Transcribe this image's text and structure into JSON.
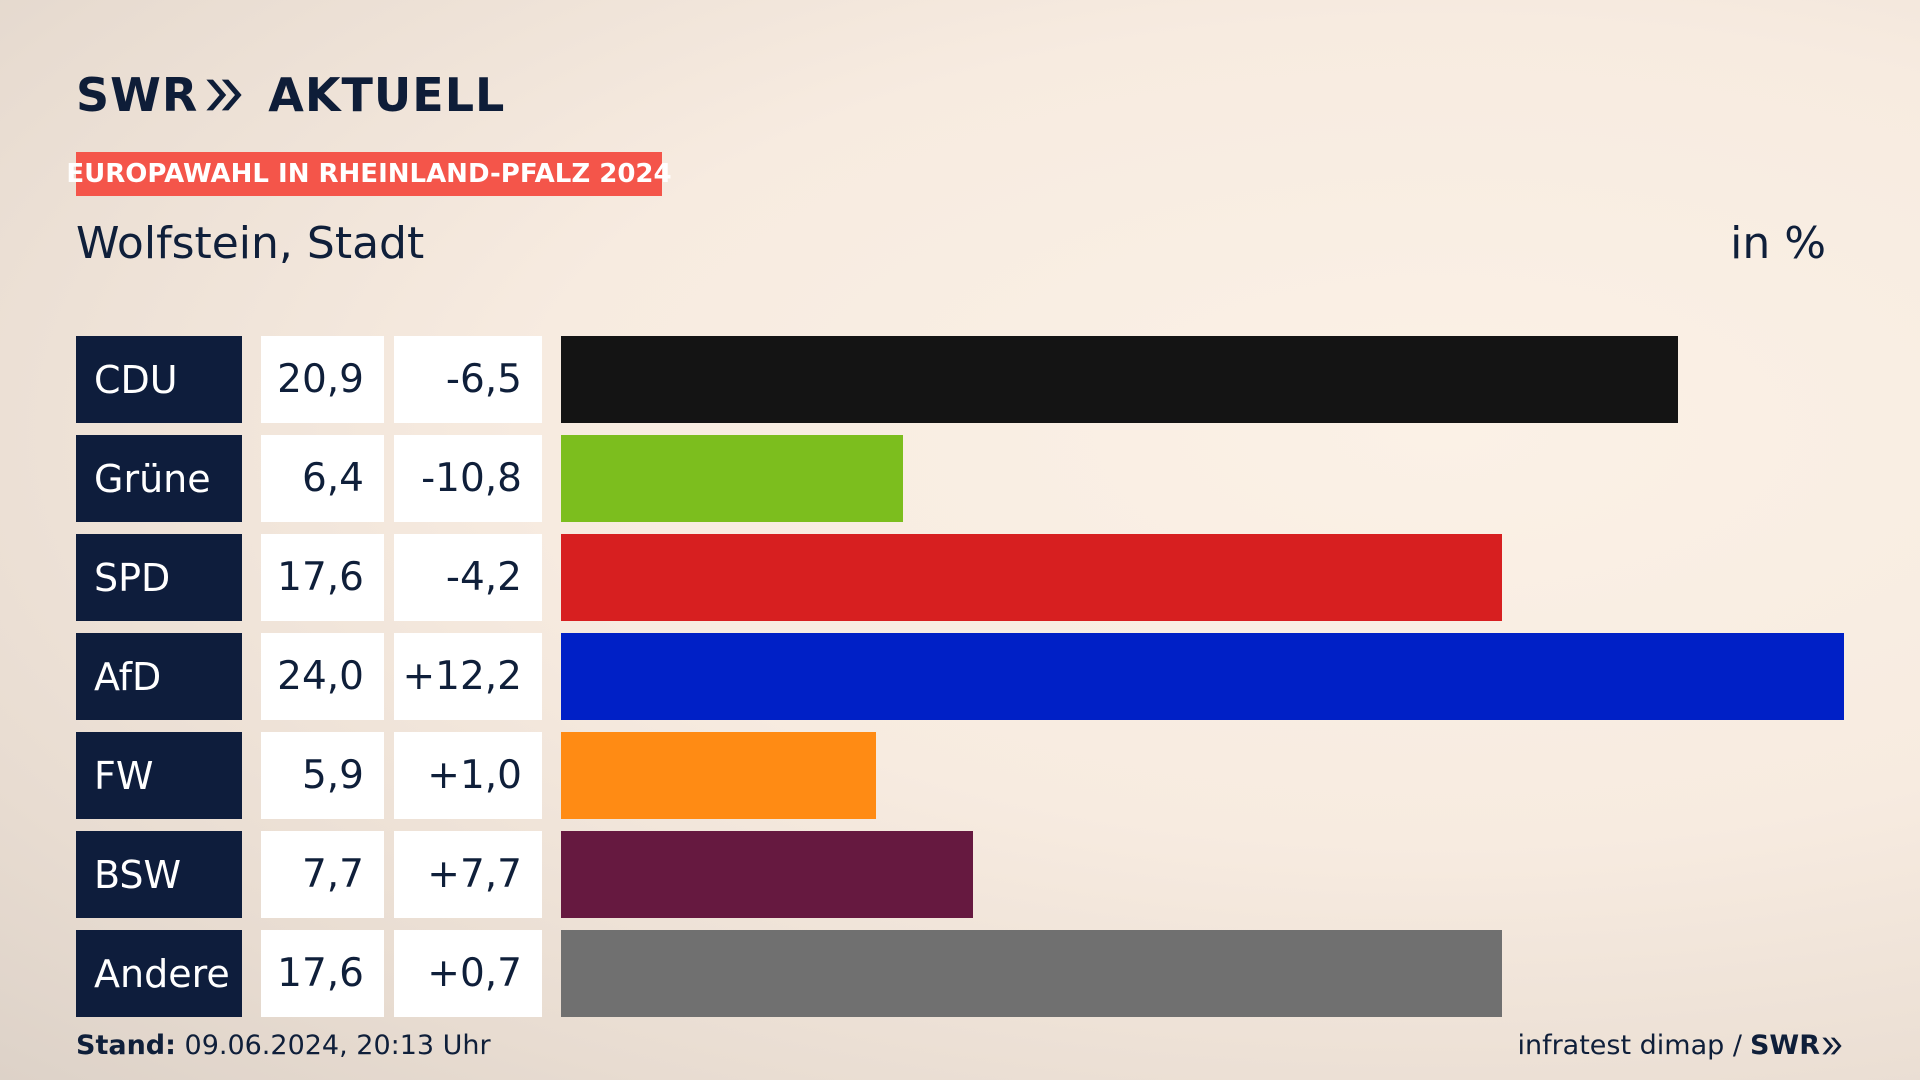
{
  "brand": {
    "logo_text": "SWR",
    "product": "AKTUELL",
    "footer_logo": "SWR"
  },
  "badge": "EUROPAWAHL IN RHEINLAND-PFALZ 2024",
  "subtitle": "Wolfstein, Stadt",
  "unit": "in %",
  "footer": {
    "stand_label": "Stand:",
    "stand_value": "09.06.2024, 20:13 Uhr",
    "source": "infratest dimap /"
  },
  "chart_data": {
    "type": "bar",
    "orientation": "horizontal",
    "categories": [
      "CDU",
      "Grüne",
      "SPD",
      "AfD",
      "FW",
      "BSW",
      "Andere"
    ],
    "values": [
      20.9,
      6.4,
      17.6,
      24.0,
      5.9,
      7.7,
      17.6
    ],
    "value_labels": [
      "20,9",
      "6,4",
      "17,6",
      "24,0",
      "5,9",
      "7,7",
      "17,6"
    ],
    "change_labels": [
      "-6,5",
      "-10,8",
      "-4,2",
      "+12,2",
      "+1,0",
      "+7,7",
      "+0,7"
    ],
    "changes": [
      -6.5,
      -10.8,
      -4.2,
      12.2,
      1.0,
      7.7,
      0.7
    ],
    "colors": [
      "#141414",
      "#7cbe1e",
      "#d71f20",
      "#0020c6",
      "#ff8b14",
      "#661940",
      "#707070"
    ],
    "xlim": [
      0,
      24.0
    ],
    "grid": false,
    "legend": "none"
  }
}
